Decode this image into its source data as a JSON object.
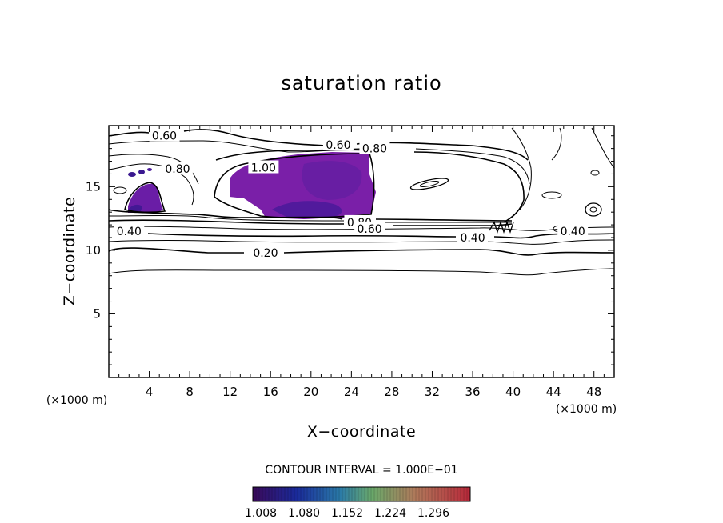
{
  "chart_data": {
    "type": "contour",
    "title": "saturation ratio",
    "xlabel": "X−coordinate",
    "ylabel": "Z−coordinate",
    "x_unit": "(×1000 m)",
    "y_unit": "(×1000 m)",
    "xlim": [
      0,
      50
    ],
    "ylim": [
      0,
      19.8
    ],
    "xticks": [
      4,
      8,
      12,
      16,
      20,
      24,
      28,
      32,
      36,
      40,
      44,
      48
    ],
    "yticks": [
      5,
      10,
      15
    ],
    "contour_interval_text": "CONTOUR INTERVAL = 1.000E−01",
    "contour_labels": [
      {
        "text": "0.60",
        "x": 5.5,
        "z": 19.0
      },
      {
        "text": "0.60",
        "x": 22.7,
        "z": 18.3
      },
      {
        "text": "0.80",
        "x": 26.3,
        "z": 18.0
      },
      {
        "text": "1.00",
        "x": 15.3,
        "z": 16.5
      },
      {
        "text": "0.80",
        "x": 6.8,
        "z": 16.4
      },
      {
        "text": "0.80",
        "x": 24.8,
        "z": 12.2
      },
      {
        "text": "0.60",
        "x": 25.8,
        "z": 11.7
      },
      {
        "text": "0.40",
        "x": 2.0,
        "z": 11.5
      },
      {
        "text": "0.40",
        "x": 36.0,
        "z": 11.0
      },
      {
        "text": "0.40",
        "x": 45.9,
        "z": 11.5
      },
      {
        "text": "0.20",
        "x": 15.5,
        "z": 9.8
      }
    ],
    "filled_levels": [
      1.008,
      1.08,
      1.152,
      1.224,
      1.296
    ],
    "colorbar_labels": [
      "1.008",
      "1.080",
      "1.152",
      "1.224",
      "1.296"
    ]
  }
}
